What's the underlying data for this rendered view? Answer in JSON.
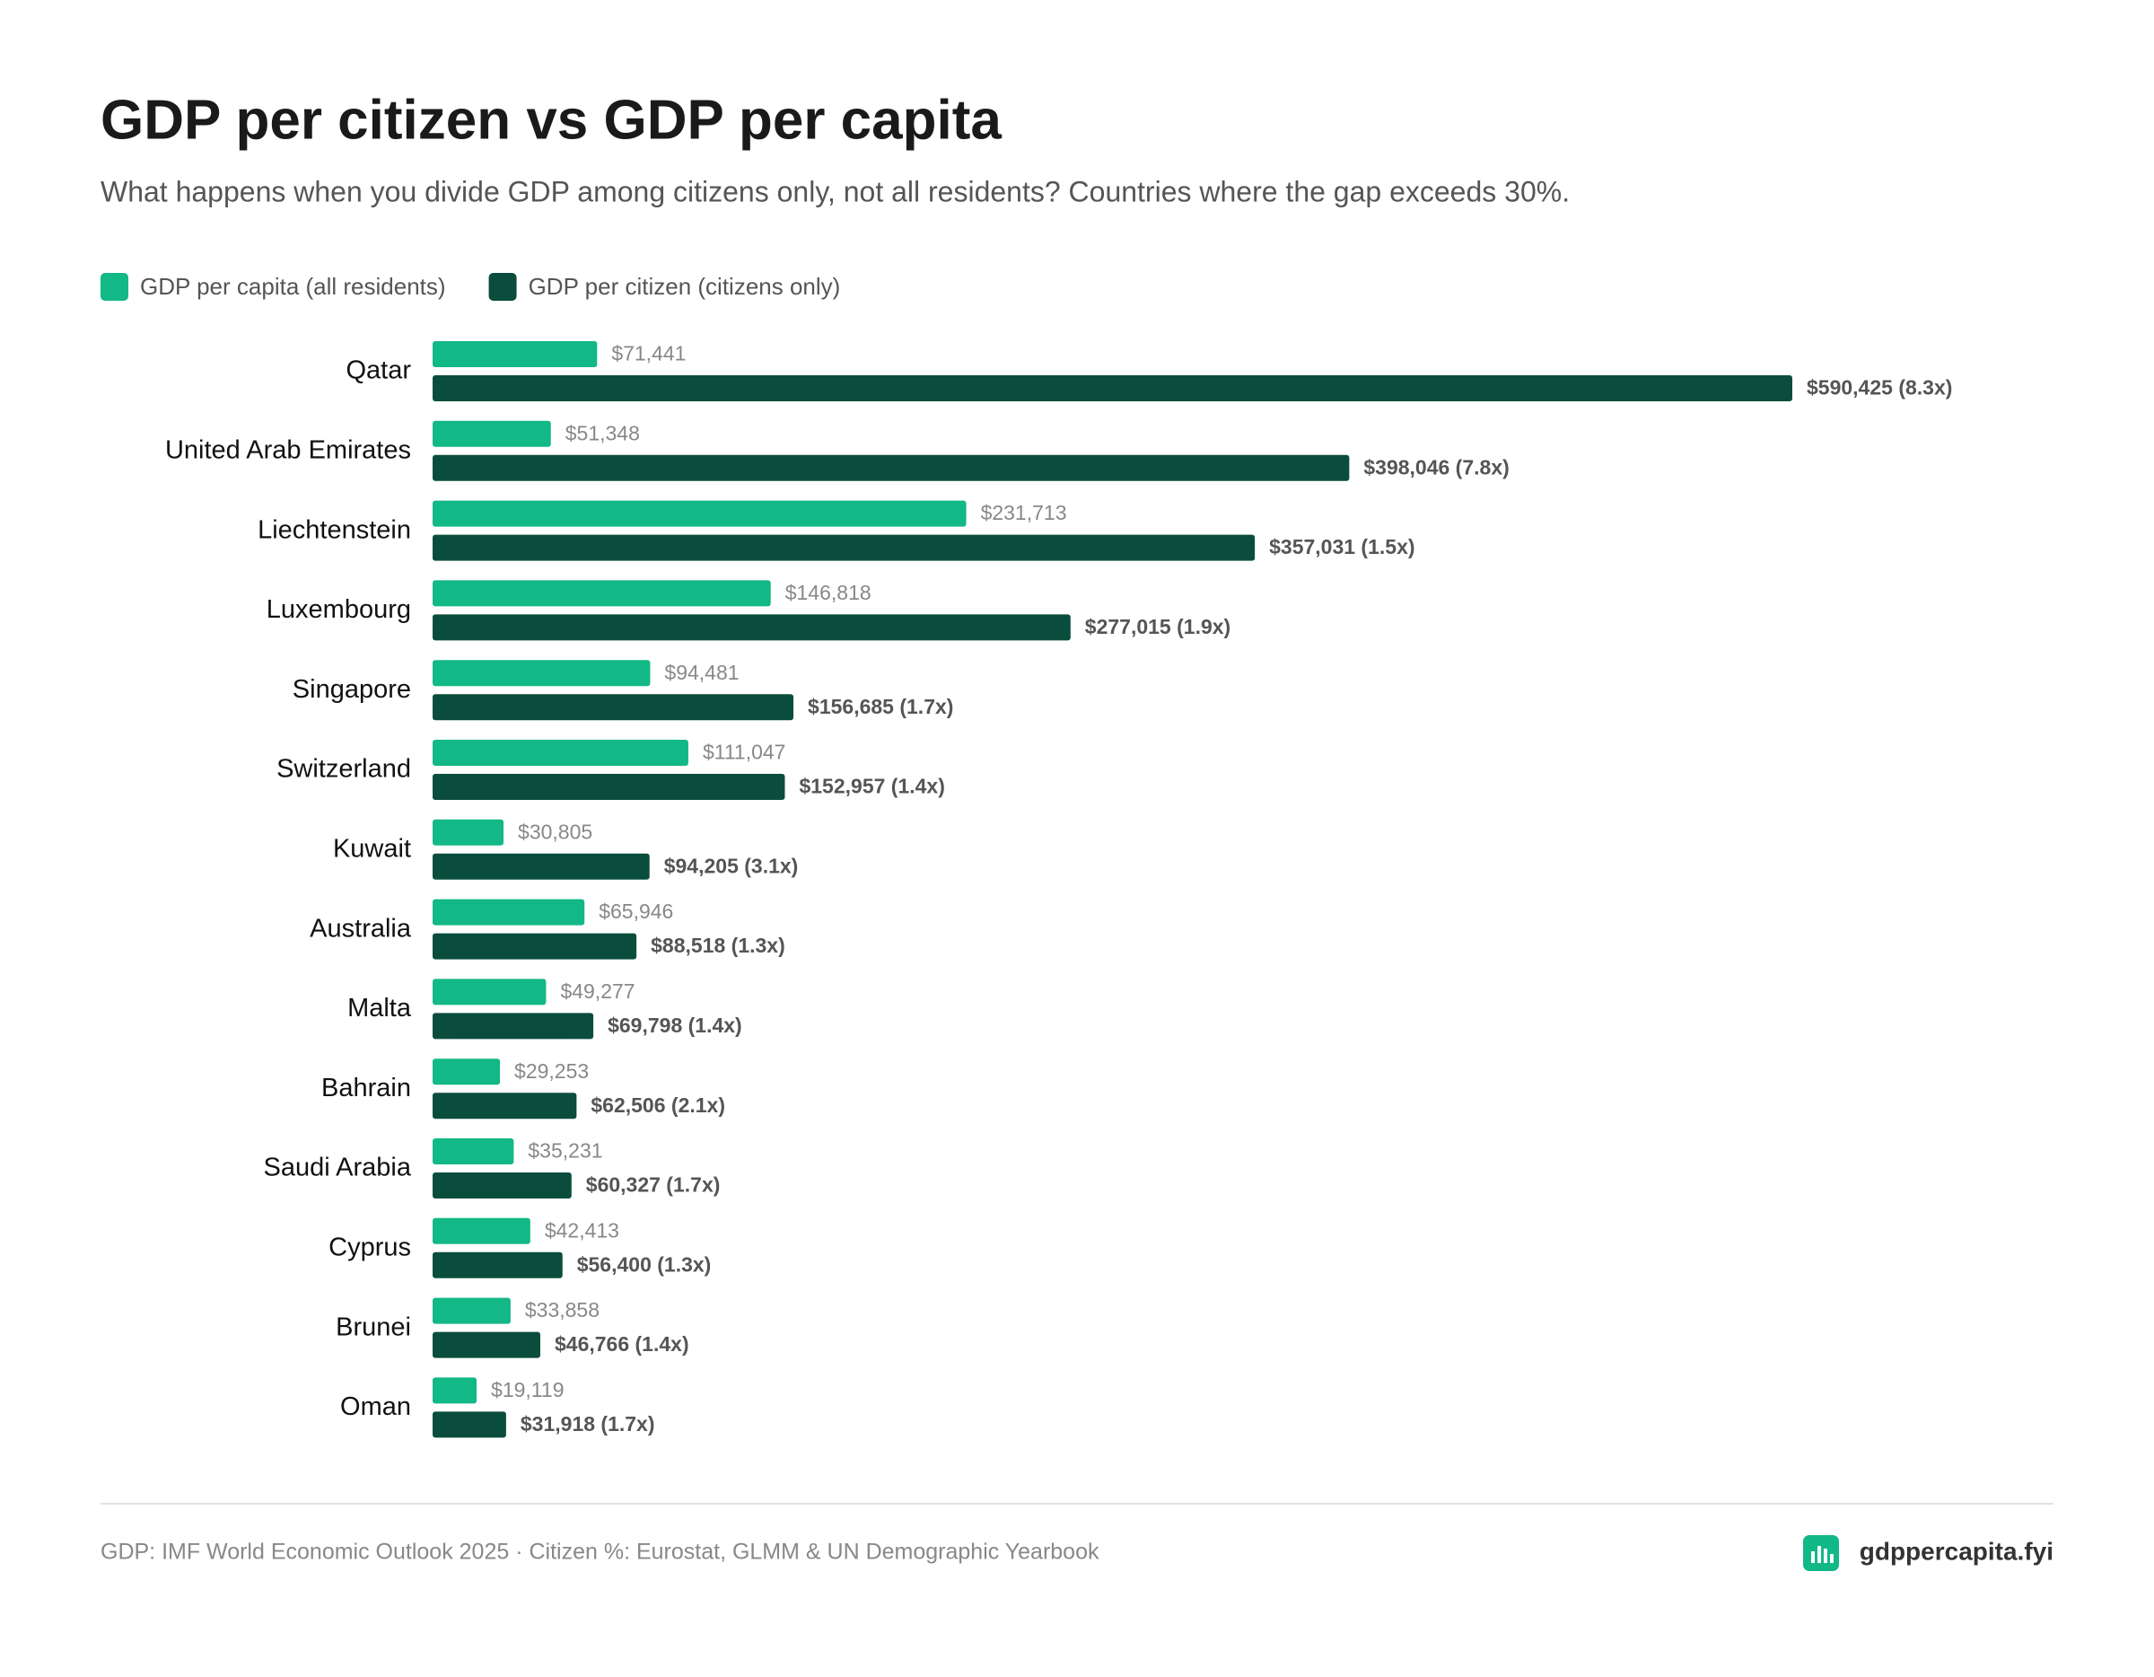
{
  "chart_data": {
    "type": "bar",
    "orientation": "horizontal",
    "title": "GDP per citizen vs GDP per capita",
    "subtitle": "What happens when you divide GDP among citizens only, not all residents? Countries where the gap exceeds 30%.",
    "categories": [
      "Qatar",
      "United Arab Emirates",
      "Liechtenstein",
      "Luxembourg",
      "Singapore",
      "Switzerland",
      "Kuwait",
      "Australia",
      "Malta",
      "Bahrain",
      "Saudi Arabia",
      "Cyprus",
      "Brunei",
      "Oman"
    ],
    "series": [
      {
        "name": "GDP per capita (all residents)",
        "color": "#12b886",
        "values": [
          71441,
          51348,
          231713,
          146818,
          94481,
          111047,
          30805,
          65946,
          49277,
          29253,
          35231,
          42413,
          33858,
          19119
        ],
        "value_labels": [
          "$71,441",
          "$51,348",
          "$231,713",
          "$146,818",
          "$94,481",
          "$111,047",
          "$30,805",
          "$65,946",
          "$49,277",
          "$29,253",
          "$35,231",
          "$42,413",
          "$33,858",
          "$19,119"
        ]
      },
      {
        "name": "GDP per citizen (citizens only)",
        "color": "#0a4d3c",
        "values": [
          590425,
          398046,
          357031,
          277015,
          156685,
          152957,
          94205,
          88518,
          69798,
          62506,
          60327,
          56400,
          46766,
          31918
        ],
        "value_labels": [
          "$590,425 (8.3x)",
          "$398,046 (7.8x)",
          "$357,031 (1.5x)",
          "$277,015 (1.9x)",
          "$156,685 (1.7x)",
          "$152,957 (1.4x)",
          "$94,205 (3.1x)",
          "$88,518 (1.3x)",
          "$69,798 (1.4x)",
          "$62,506 (2.1x)",
          "$60,327 (1.7x)",
          "$56,400 (1.3x)",
          "$46,766 (1.4x)",
          "$31,918 (1.7x)"
        ]
      }
    ],
    "legend": "top-left",
    "source": "GDP: IMF World Economic Outlook 2025 · Citizen %: Eurostat, GLMM & UN Demographic Yearbook",
    "brand": "gdppercapita.fyi"
  }
}
